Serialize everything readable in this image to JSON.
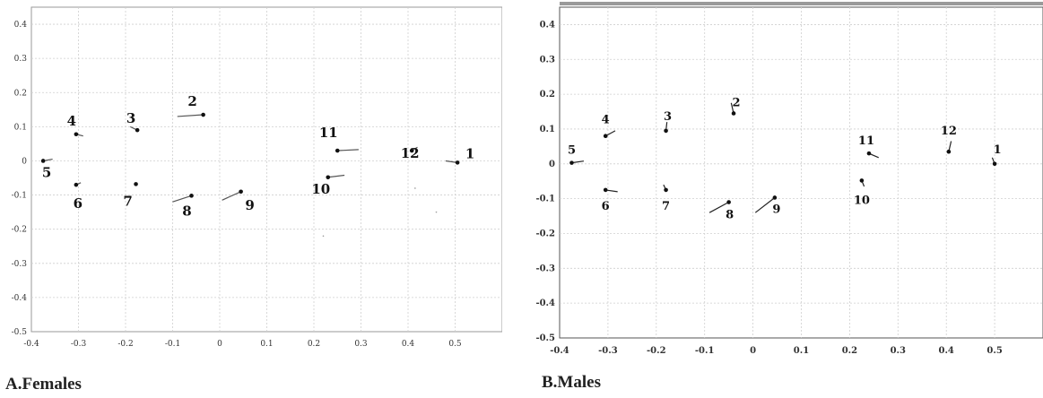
{
  "chart_data": [
    {
      "type": "scatter",
      "title": "A.Females",
      "xlabel": "",
      "ylabel": "",
      "xlim": [
        -0.4,
        0.6
      ],
      "ylim": [
        -0.5,
        0.45
      ],
      "x_ticks": [
        -0.4,
        -0.3,
        -0.2,
        -0.1,
        0,
        0.1,
        0.2,
        0.3,
        0.4,
        0.5
      ],
      "x_tick_labels": [
        "-0.4",
        "-0.3",
        "-0.2",
        "-0.1",
        "0",
        "0.1",
        "0.2",
        "0.3",
        "0.4",
        "0.5"
      ],
      "y_ticks": [
        0.4,
        0.3,
        0.2,
        0.1,
        0,
        -0.1,
        -0.2,
        -0.3,
        -0.4,
        -0.5
      ],
      "y_tick_labels": [
        "0.4",
        "0.3",
        "0.2",
        "0.1",
        "0",
        "-0.1",
        "-0.2",
        "-0.3",
        "-0.4",
        "-0.5"
      ],
      "grid": true,
      "points": [
        {
          "label": "1",
          "x": 0.505,
          "y": -0.005,
          "x2": 0.48,
          "y2": 0.0
        },
        {
          "label": "2",
          "x": -0.035,
          "y": 0.135,
          "x2": -0.09,
          "y2": 0.13
        },
        {
          "label": "3",
          "x": -0.175,
          "y": 0.09,
          "x2": -0.19,
          "y2": 0.1
        },
        {
          "label": "4",
          "x": -0.305,
          "y": 0.078,
          "x2": -0.29,
          "y2": 0.073
        },
        {
          "label": "5",
          "x": -0.375,
          "y": 0.0,
          "x2": -0.355,
          "y2": 0.005
        },
        {
          "label": "6",
          "x": -0.305,
          "y": -0.07,
          "x2": -0.295,
          "y2": -0.064
        },
        {
          "label": "7",
          "x": -0.178,
          "y": -0.068,
          "x2": -0.18,
          "y2": -0.065
        },
        {
          "label": "8",
          "x": -0.06,
          "y": -0.102,
          "x2": -0.1,
          "y2": -0.12
        },
        {
          "label": "9",
          "x": 0.045,
          "y": -0.09,
          "x2": 0.005,
          "y2": -0.115
        },
        {
          "label": "10",
          "x": 0.23,
          "y": -0.048,
          "x2": 0.265,
          "y2": -0.042
        },
        {
          "label": "11",
          "x": 0.25,
          "y": 0.03,
          "x2": 0.295,
          "y2": 0.033
        },
        {
          "label": "12",
          "x": 0.408,
          "y": 0.03,
          "x2": 0.42,
          "y2": 0.04
        }
      ],
      "stray_marks": [
        {
          "x": 0.415,
          "y": -0.08
        },
        {
          "x": 0.46,
          "y": -0.15
        },
        {
          "x": 0.22,
          "y": -0.22
        }
      ],
      "colors": {
        "point": "#111111",
        "segment": "#555555",
        "grid": "#cfcfcf",
        "axis": "#999999"
      }
    },
    {
      "type": "scatter",
      "title": "B.Males",
      "xlabel": "",
      "ylabel": "",
      "xlim": [
        -0.4,
        0.6
      ],
      "ylim": [
        -0.5,
        0.45
      ],
      "x_ticks": [
        -0.4,
        -0.3,
        -0.2,
        -0.1,
        0,
        0.1,
        0.2,
        0.3,
        0.4,
        0.5
      ],
      "x_tick_labels": [
        "-0.4",
        "-0.3",
        "-0.2",
        "-0.1",
        "0",
        "0.1",
        "0.2",
        "0.3",
        "0.4",
        "0.5"
      ],
      "y_ticks": [
        0.4,
        0.3,
        0.2,
        0.1,
        0,
        -0.1,
        -0.2,
        -0.3,
        -0.4,
        -0.5
      ],
      "y_tick_labels": [
        "0.4",
        "0.3",
        "0.2",
        "0.1",
        "0",
        "-0.1",
        "-0.2",
        "-0.3",
        "-0.4",
        "-0.5"
      ],
      "grid": true,
      "points": [
        {
          "label": "1",
          "x": 0.5,
          "y": 0.0,
          "x2": 0.495,
          "y2": 0.018
        },
        {
          "label": "2",
          "x": -0.04,
          "y": 0.145,
          "x2": -0.045,
          "y2": 0.175
        },
        {
          "label": "3",
          "x": -0.18,
          "y": 0.095,
          "x2": -0.178,
          "y2": 0.12
        },
        {
          "label": "4",
          "x": -0.305,
          "y": 0.08,
          "x2": -0.285,
          "y2": 0.095
        },
        {
          "label": "5",
          "x": -0.375,
          "y": 0.003,
          "x2": -0.35,
          "y2": 0.008
        },
        {
          "label": "6",
          "x": -0.305,
          "y": -0.075,
          "x2": -0.28,
          "y2": -0.08
        },
        {
          "label": "7",
          "x": -0.18,
          "y": -0.075,
          "x2": -0.185,
          "y2": -0.06
        },
        {
          "label": "8",
          "x": -0.05,
          "y": -0.11,
          "x2": -0.09,
          "y2": -0.14
        },
        {
          "label": "9",
          "x": 0.045,
          "y": -0.097,
          "x2": 0.005,
          "y2": -0.14
        },
        {
          "label": "10",
          "x": 0.225,
          "y": -0.048,
          "x2": 0.23,
          "y2": -0.065
        },
        {
          "label": "11",
          "x": 0.24,
          "y": 0.03,
          "x2": 0.26,
          "y2": 0.018
        },
        {
          "label": "12",
          "x": 0.405,
          "y": 0.035,
          "x2": 0.41,
          "y2": 0.065
        }
      ],
      "stray_marks": [],
      "colors": {
        "point": "#111111",
        "segment": "#222222",
        "grid": "#cfcfcf",
        "axis": "#555555"
      }
    }
  ]
}
